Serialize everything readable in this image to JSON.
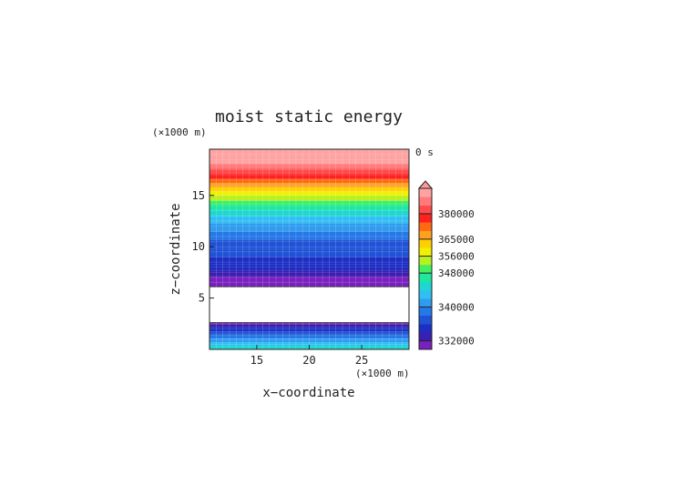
{
  "chart_data": {
    "type": "heatmap",
    "title": "moist static energy",
    "xlabel": "x−coordinate",
    "ylabel": "z−coordinate",
    "x_unit": "(×1000 m)",
    "y_unit": "(×1000 m)",
    "time_label": "0 s",
    "xlim": [
      10.5,
      29.5
    ],
    "ylim": [
      0,
      19.5
    ],
    "x_ticks": [
      15,
      20,
      25
    ],
    "x_tick_labels": [
      "15",
      "20",
      "25"
    ],
    "y_ticks": [
      5,
      10,
      15
    ],
    "y_tick_labels": [
      "5",
      "10",
      "15"
    ],
    "grid": true,
    "colorbar": {
      "tick_values": [
        332000,
        340000,
        348000,
        356000,
        365000,
        380000
      ],
      "tick_labels": [
        "332000",
        "340000",
        "348000",
        "356000",
        "365000",
        "380000"
      ],
      "levels": [
        {
          "value": 328000,
          "color": "#7a1fc0"
        },
        {
          "value": 332000,
          "color": "#3a1fb0"
        },
        {
          "value": 334000,
          "color": "#1c2ec4"
        },
        {
          "value": 336000,
          "color": "#1f52d6"
        },
        {
          "value": 338000,
          "color": "#2578e8"
        },
        {
          "value": 340000,
          "color": "#2f9cf0"
        },
        {
          "value": 342000,
          "color": "#30bff2"
        },
        {
          "value": 344000,
          "color": "#1ed8d0"
        },
        {
          "value": 346000,
          "color": "#1fe89c"
        },
        {
          "value": 348000,
          "color": "#44f060"
        },
        {
          "value": 352000,
          "color": "#b8f020"
        },
        {
          "value": 356000,
          "color": "#f0f000"
        },
        {
          "value": 360000,
          "color": "#ffd000"
        },
        {
          "value": 365000,
          "color": "#ffa020"
        },
        {
          "value": 370000,
          "color": "#ff6a10"
        },
        {
          "value": 375000,
          "color": "#ff2020"
        },
        {
          "value": 380000,
          "color": "#ff4b4b"
        },
        {
          "value": 385000,
          "color": "#ff7a7a"
        },
        {
          "value": 390000,
          "color": "#ffa2a2"
        }
      ],
      "overflow_color": "#ff9999"
    },
    "bands": [
      {
        "z0": 0.0,
        "z1": 0.35,
        "value": 344000
      },
      {
        "z0": 0.35,
        "z1": 0.7,
        "value": 342000
      },
      {
        "z0": 0.7,
        "z1": 1.05,
        "value": 340000
      },
      {
        "z0": 1.05,
        "z1": 1.4,
        "value": 338000
      },
      {
        "z0": 1.4,
        "z1": 1.75,
        "value": 336000
      },
      {
        "z0": 1.75,
        "z1": 2.15,
        "value": 334000
      },
      {
        "z0": 2.15,
        "z1": 2.45,
        "value": 332000
      },
      {
        "z0": 2.45,
        "z1": 2.6,
        "value": 328000
      },
      {
        "z0": 2.6,
        "z1": 6.1,
        "value": null
      },
      {
        "z0": 6.1,
        "z1": 6.6,
        "value": 328000
      },
      {
        "z0": 6.6,
        "z1": 7.1,
        "value": 330000
      },
      {
        "z0": 7.1,
        "z1": 7.7,
        "value": 332000
      },
      {
        "z0": 7.7,
        "z1": 8.3,
        "value": 334000
      },
      {
        "z0": 8.3,
        "z1": 9.0,
        "value": 334000
      },
      {
        "z0": 9.0,
        "z1": 9.8,
        "value": 336000
      },
      {
        "z0": 9.8,
        "z1": 10.7,
        "value": 336000
      },
      {
        "z0": 10.7,
        "z1": 11.5,
        "value": 338000
      },
      {
        "z0": 11.5,
        "z1": 12.3,
        "value": 340000
      },
      {
        "z0": 12.3,
        "z1": 13.0,
        "value": 342000
      },
      {
        "z0": 13.0,
        "z1": 13.6,
        "value": 344000
      },
      {
        "z0": 13.6,
        "z1": 14.1,
        "value": 346000
      },
      {
        "z0": 14.1,
        "z1": 14.5,
        "value": 348000
      },
      {
        "z0": 14.5,
        "z1": 15.0,
        "value": 352000
      },
      {
        "z0": 15.0,
        "z1": 15.4,
        "value": 356000
      },
      {
        "z0": 15.4,
        "z1": 15.8,
        "value": 360000
      },
      {
        "z0": 15.8,
        "z1": 16.2,
        "value": 365000
      },
      {
        "z0": 16.2,
        "z1": 16.6,
        "value": 370000
      },
      {
        "z0": 16.6,
        "z1": 17.1,
        "value": 375000
      },
      {
        "z0": 17.1,
        "z1": 17.6,
        "value": 380000
      },
      {
        "z0": 17.6,
        "z1": 18.1,
        "value": 385000
      },
      {
        "z0": 18.1,
        "z1": 19.5,
        "value": 390000
      }
    ]
  }
}
